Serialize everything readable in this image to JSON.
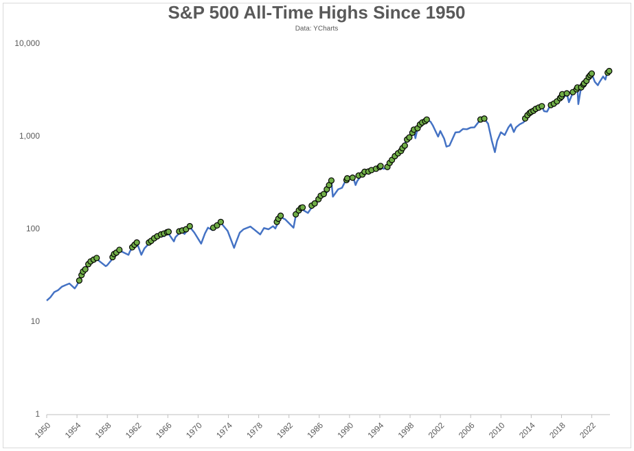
{
  "chart_data": {
    "type": "line",
    "title": "S&P 500 All-Time Highs Since 1950",
    "subtitle": "Data: YCharts",
    "xlim": [
      1950,
      2024.4
    ],
    "xticks": [
      1950,
      1954,
      1958,
      1962,
      1966,
      1970,
      1974,
      1978,
      1982,
      1986,
      1990,
      1994,
      1998,
      2002,
      2006,
      2010,
      2014,
      2018,
      2022
    ],
    "ylim": [
      1,
      10000
    ],
    "yticks": [
      {
        "value": 10000,
        "label": "10,000"
      },
      {
        "value": 1000,
        "label": "1,000"
      },
      100,
      10,
      1
    ],
    "log_y": true,
    "grid": false,
    "series": [
      {
        "type": "line",
        "color": "#4472c4",
        "x": [
          1950.0,
          1950.5,
          1951.0,
          1951.5,
          1952.0,
          1952.5,
          1953.0,
          1953.7,
          1954.0,
          1954.5,
          1955.0,
          1955.5,
          1956.0,
          1956.6,
          1957.0,
          1957.8,
          1958.0,
          1958.5,
          1959.0,
          1959.6,
          1960.0,
          1960.8,
          1961.0,
          1961.9,
          1962.5,
          1962.9,
          1963.5,
          1963.9,
          1964.5,
          1965.0,
          1965.5,
          1966.0,
          1966.8,
          1967.0,
          1967.8,
          1968.2,
          1968.9,
          1969.5,
          1970.4,
          1970.9,
          1971.3,
          1971.9,
          1972.5,
          1972.99,
          1973.5,
          1973.9,
          1974.75,
          1975.0,
          1975.5,
          1976.0,
          1976.9,
          1977.5,
          1978.2,
          1978.7,
          1979.3,
          1979.9,
          1980.2,
          1980.9,
          1981.5,
          1982.6,
          1982.9,
          1983.5,
          1984.5,
          1984.9,
          1985.5,
          1985.9,
          1986.6,
          1987.0,
          1987.6,
          1987.8,
          1988.5,
          1989.0,
          1989.6,
          1990.5,
          1990.8,
          1991.0,
          1991.9,
          1992.5,
          1992.99,
          1993.5,
          1994.0,
          1994.5,
          1995.0,
          1995.5,
          1995.99,
          1996.5,
          1996.99,
          1997.5,
          1997.9,
          1998.5,
          1998.7,
          1998.99,
          1999.5,
          1999.99,
          2000.2,
          2000.7,
          2001.0,
          2001.7,
          2001.99,
          2002.5,
          2002.8,
          2003.2,
          2003.99,
          2004.5,
          2004.99,
          2005.5,
          2005.99,
          2006.5,
          2006.99,
          2007.5,
          2007.8,
          2008.3,
          2008.8,
          2009.2,
          2009.5,
          2009.99,
          2010.5,
          2010.99,
          2011.3,
          2011.7,
          2011.99,
          2012.5,
          2012.99,
          2013.5,
          2013.99,
          2014.5,
          2014.99,
          2015.4,
          2015.7,
          2016.1,
          2016.5,
          2016.99,
          2017.5,
          2017.99,
          2018.1,
          2018.2,
          2018.7,
          2018.98,
          2019.5,
          2019.99,
          2020.1,
          2020.22,
          2020.5,
          2020.99,
          2021.5,
          2021.99,
          2022.4,
          2022.8,
          2022.99,
          2023.5,
          2023.8,
          2023.99,
          2024.3
        ],
        "values": [
          17,
          18.5,
          21,
          22,
          24,
          25,
          26,
          23,
          25,
          30,
          36,
          42,
          45,
          48,
          45,
          40,
          41,
          46,
          55,
          59,
          57,
          53,
          58,
          72,
          53,
          62,
          70,
          75,
          83,
          86,
          84,
          92,
          74,
          82,
          96,
          89,
          106,
          92,
          70,
          90,
          104,
          98,
          108,
          118,
          105,
          96,
          63,
          72,
          92,
          100,
          107,
          98,
          88,
          103,
          100,
          108,
          102,
          135,
          128,
          104,
          140,
          168,
          150,
          167,
          190,
          210,
          240,
          250,
          330,
          225,
          270,
          280,
          350,
          360,
          300,
          330,
          417,
          410,
          435,
          450,
          470,
          450,
          460,
          550,
          615,
          640,
          740,
          910,
          950,
          1180,
          960,
          1230,
          1370,
          1469,
          1520,
          1450,
          1320,
          1000,
          1150,
          950,
          780,
          800,
          1110,
          1120,
          1210,
          1200,
          1250,
          1260,
          1420,
          1520,
          1560,
          1380,
          900,
          680,
          900,
          1115,
          1040,
          1257,
          1360,
          1120,
          1257,
          1360,
          1426,
          1650,
          1848,
          1960,
          2058,
          2130,
          1880,
          1860,
          2170,
          2239,
          2430,
          2673,
          2870,
          2580,
          2930,
          2350,
          2980,
          3230,
          3380,
          2240,
          3100,
          3756,
          4300,
          4766,
          3900,
          3580,
          3840,
          4450,
          4120,
          4770,
          5100
        ]
      },
      {
        "type": "scatter",
        "color": "#70ad47",
        "edgecolor": "#000000",
        "x": [
          1954.3,
          1954.6,
          1954.8,
          1955.1,
          1955.5,
          1955.8,
          1956.2,
          1956.6,
          1958.7,
          1958.9,
          1959.2,
          1959.6,
          1961.3,
          1961.6,
          1961.9,
          1963.5,
          1963.8,
          1964.2,
          1964.6,
          1965.1,
          1965.5,
          1965.9,
          1966.1,
          1967.5,
          1967.9,
          1968.4,
          1968.9,
          1972.0,
          1972.5,
          1972.99,
          1980.4,
          1980.6,
          1980.9,
          1982.9,
          1983.3,
          1983.6,
          1983.8,
          1985.0,
          1985.4,
          1985.9,
          1986.2,
          1986.6,
          1987.0,
          1987.3,
          1987.6,
          1989.6,
          1989.7,
          1990.4,
          1991.2,
          1991.7,
          1991.99,
          1992.5,
          1992.9,
          1993.5,
          1993.99,
          1994.1,
          1995.0,
          1995.3,
          1995.6,
          1995.99,
          1996.4,
          1996.8,
          1996.99,
          1997.3,
          1997.6,
          1997.9,
          1998.3,
          1998.5,
          1998.99,
          1999.3,
          1999.6,
          1999.99,
          2000.2,
          2007.3,
          2007.8,
          2013.2,
          2013.5,
          2013.8,
          2013.99,
          2014.3,
          2014.6,
          2014.99,
          2015.4,
          2016.6,
          2016.99,
          2017.4,
          2017.8,
          2017.99,
          2018.1,
          2018.7,
          2019.5,
          2019.99,
          2020.1,
          2020.6,
          2020.9,
          2020.99,
          2021.3,
          2021.6,
          2021.8,
          2021.99,
          2024.1,
          2024.3
        ],
        "values": [
          28,
          32,
          35,
          37,
          42,
          45,
          47,
          49,
          50,
          54,
          56,
          60,
          64,
          68,
          72,
          72,
          75,
          80,
          84,
          88,
          90,
          93,
          94,
          95,
          97,
          100,
          108,
          104,
          110,
          120,
          120,
          130,
          140,
          145,
          160,
          170,
          172,
          180,
          190,
          211,
          230,
          240,
          270,
          300,
          336,
          340,
          355,
          360,
          380,
          390,
          417,
          420,
          435,
          450,
          470,
          482,
          470,
          520,
          560,
          615,
          660,
          700,
          750,
          800,
          930,
          980,
          1100,
          1190,
          1230,
          1350,
          1420,
          1469,
          1527,
          1530,
          1565,
          1570,
          1700,
          1800,
          1848,
          1900,
          1990,
          2058,
          2130,
          2190,
          2270,
          2400,
          2600,
          2700,
          2870,
          2930,
          3020,
          3240,
          3390,
          3400,
          3650,
          3760,
          4000,
          4400,
          4600,
          4796,
          4900,
          5100
        ]
      }
    ]
  }
}
